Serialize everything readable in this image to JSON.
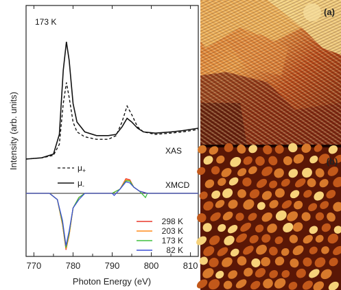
{
  "chart_data": {
    "type": "line",
    "xlabel": "Photon Energy (eV)",
    "ylabel": "Intensity (arb. units)",
    "xlim": [
      768,
      812
    ],
    "x_ticks": [
      "770",
      "780",
      "790",
      "800",
      "810"
    ],
    "annotations": {
      "temperature": "173 K",
      "xas": "XAS",
      "xmcd": "XMCD",
      "mu_plus": "μ",
      "mu_plus_sub": "+",
      "mu_minus": "μ",
      "mu_minus_sub": "-"
    },
    "xas_series": [
      {
        "name": "μ+",
        "style": "dashed",
        "points": [
          [
            768,
            0.0
          ],
          [
            772,
            0.01
          ],
          [
            775,
            0.03
          ],
          [
            776.5,
            0.12
          ],
          [
            777.5,
            0.45
          ],
          [
            778.3,
            0.62
          ],
          [
            779,
            0.5
          ],
          [
            780,
            0.3
          ],
          [
            781,
            0.22
          ],
          [
            783,
            0.18
          ],
          [
            786,
            0.16
          ],
          [
            789,
            0.16
          ],
          [
            791,
            0.19
          ],
          [
            792.5,
            0.3
          ],
          [
            793.8,
            0.43
          ],
          [
            795,
            0.36
          ],
          [
            796.5,
            0.26
          ],
          [
            798,
            0.22
          ],
          [
            801,
            0.2
          ],
          [
            805,
            0.21
          ],
          [
            808,
            0.22
          ],
          [
            812,
            0.24
          ]
        ]
      },
      {
        "name": "μ-",
        "style": "solid",
        "points": [
          [
            768,
            0.0
          ],
          [
            772,
            0.01
          ],
          [
            775,
            0.04
          ],
          [
            776.5,
            0.2
          ],
          [
            777.5,
            0.72
          ],
          [
            778.3,
            0.95
          ],
          [
            779,
            0.8
          ],
          [
            780,
            0.45
          ],
          [
            781,
            0.3
          ],
          [
            783,
            0.22
          ],
          [
            786,
            0.19
          ],
          [
            789,
            0.19
          ],
          [
            791,
            0.2
          ],
          [
            792.5,
            0.26
          ],
          [
            793.8,
            0.33
          ],
          [
            795,
            0.3
          ],
          [
            796.5,
            0.25
          ],
          [
            798,
            0.22
          ],
          [
            801,
            0.21
          ],
          [
            805,
            0.22
          ],
          [
            808,
            0.23
          ],
          [
            812,
            0.25
          ]
        ]
      }
    ],
    "xmcd_series": [
      {
        "name": "298 K",
        "color": "#e8372a",
        "points": [
          [
            768,
            0.0
          ],
          [
            774,
            0.0
          ],
          [
            776,
            -0.03
          ],
          [
            777.3,
            -0.15
          ],
          [
            778.2,
            -0.27
          ],
          [
            779,
            -0.2
          ],
          [
            780,
            -0.07
          ],
          [
            781.5,
            -0.02
          ],
          [
            783,
            0.0
          ],
          [
            790,
            0.0
          ],
          [
            792,
            0.02
          ],
          [
            793.5,
            0.07
          ],
          [
            794.5,
            0.065
          ],
          [
            795.5,
            0.03
          ],
          [
            797,
            0.01
          ],
          [
            799,
            0.0
          ],
          [
            812,
            0.0
          ]
        ]
      },
      {
        "name": "203 K",
        "color": "#ff8c1a",
        "points": [
          [
            768,
            0.0
          ],
          [
            774,
            0.0
          ],
          [
            776,
            -0.03
          ],
          [
            777.3,
            -0.15
          ],
          [
            778.2,
            -0.265
          ],
          [
            779,
            -0.2
          ],
          [
            780,
            -0.07
          ],
          [
            781.5,
            -0.02
          ],
          [
            783,
            0.0
          ],
          [
            790,
            0.0
          ],
          [
            792,
            0.02
          ],
          [
            793.5,
            0.065
          ],
          [
            794.5,
            0.06
          ],
          [
            795.5,
            0.03
          ],
          [
            797,
            0.01
          ],
          [
            799,
            0.0
          ],
          [
            812,
            0.0
          ]
        ]
      },
      {
        "name": "173 K",
        "color": "#3fbf3f",
        "points": [
          [
            768,
            0.0
          ],
          [
            774,
            0.0
          ],
          [
            776,
            -0.03
          ],
          [
            777.3,
            -0.14
          ],
          [
            778.2,
            -0.26
          ],
          [
            779,
            -0.19
          ],
          [
            780,
            -0.07
          ],
          [
            781.5,
            -0.02
          ],
          [
            783,
            0.0
          ],
          [
            790,
            0.0
          ],
          [
            792,
            0.02
          ],
          [
            793.5,
            0.06
          ],
          [
            794.5,
            0.058
          ],
          [
            795.5,
            0.03
          ],
          [
            797,
            0.01
          ],
          [
            798.5,
            -0.02
          ],
          [
            799,
            0.0
          ],
          [
            812,
            0.0
          ]
        ]
      },
      {
        "name": "82 K",
        "color": "#3a4fd6",
        "points": [
          [
            768,
            0.0
          ],
          [
            774,
            0.0
          ],
          [
            776,
            -0.03
          ],
          [
            777.3,
            -0.13
          ],
          [
            778.2,
            -0.25
          ],
          [
            779,
            -0.18
          ],
          [
            780,
            -0.07
          ],
          [
            781.5,
            -0.03
          ],
          [
            783,
            0.0
          ],
          [
            790,
            0.0
          ],
          [
            790.5,
            -0.01
          ],
          [
            792,
            0.02
          ],
          [
            793.5,
            0.055
          ],
          [
            794.5,
            0.05
          ],
          [
            795.5,
            0.03
          ],
          [
            797,
            0.01
          ],
          [
            799,
            0.0
          ],
          [
            812,
            0.0
          ]
        ]
      }
    ]
  },
  "images": [
    {
      "label": "(a)",
      "base": "#c24d1c",
      "light": "#f3c070",
      "dark": "#5a1608"
    },
    {
      "label": "(b)",
      "base": "#a8390e",
      "light": "#f6d27a",
      "dark": "#280600"
    }
  ]
}
